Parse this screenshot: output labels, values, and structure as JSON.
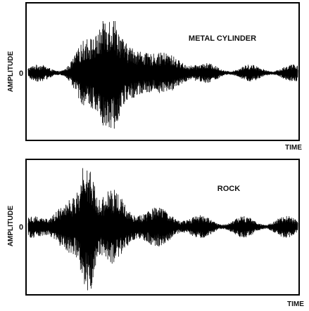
{
  "charts": [
    {
      "type": "line",
      "panel_label": "METAL CYLINDER",
      "ylabel": "AMPLITUDE",
      "xlabel": "TIME",
      "zero_tick_label": "0",
      "line_color": "#000000",
      "frame_color": "#000000",
      "grid": false,
      "chart_data": {
        "type": "line",
        "description_series": "acoustic return envelope",
        "envelope": {
          "x_range": [
            0,
            1
          ],
          "y_range": [
            -1,
            1
          ],
          "baseline": 0.15,
          "bursts": [
            {
              "center": 0.3,
              "width": 0.045,
              "amp": 0.95
            },
            {
              "center": 0.22,
              "width": 0.05,
              "amp": 0.45
            },
            {
              "center": 0.4,
              "width": 0.07,
              "amp": 0.3
            },
            {
              "center": 0.52,
              "width": 0.1,
              "amp": 0.18
            }
          ]
        }
      }
    },
    {
      "type": "line",
      "panel_label": "ROCK",
      "ylabel": "AMPLITUDE",
      "xlabel": "TIME",
      "zero_tick_label": "0",
      "line_color": "#000000",
      "frame_color": "#000000",
      "grid": false,
      "chart_data": {
        "type": "line",
        "description_series": "acoustic return envelope",
        "envelope": {
          "x_range": [
            0,
            1
          ],
          "y_range": [
            -1,
            1
          ],
          "baseline": 0.17,
          "bursts": [
            {
              "center": 0.22,
              "width": 0.03,
              "amp": 0.95
            },
            {
              "center": 0.3,
              "width": 0.06,
              "amp": 0.4
            },
            {
              "center": 0.14,
              "width": 0.06,
              "amp": 0.28
            },
            {
              "center": 0.45,
              "width": 0.12,
              "amp": 0.15
            }
          ]
        }
      }
    }
  ]
}
